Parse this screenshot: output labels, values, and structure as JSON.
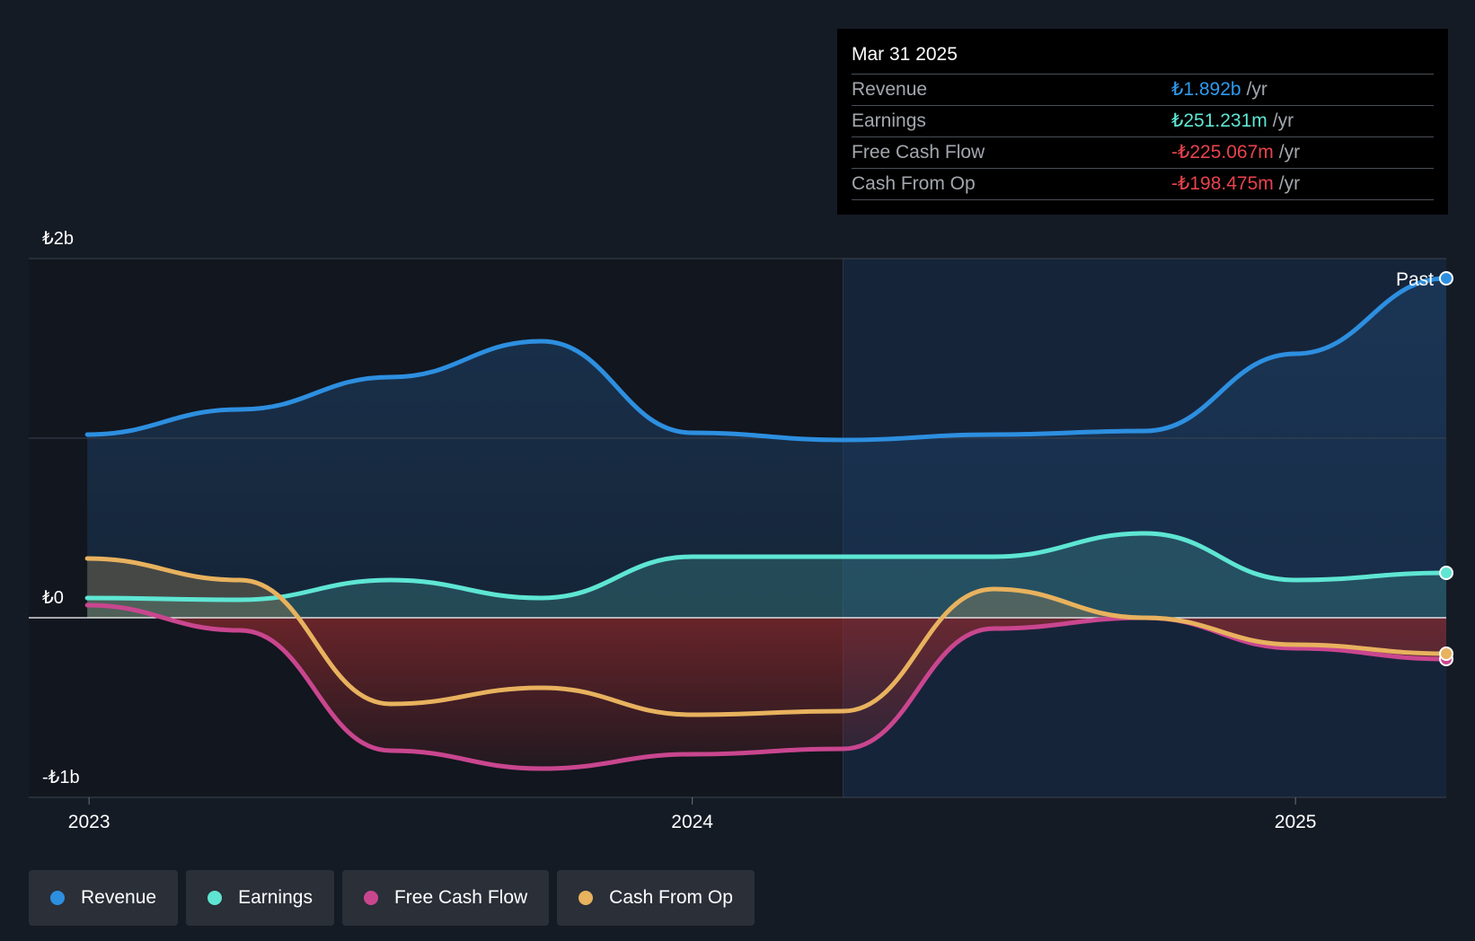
{
  "tooltip": {
    "date": "Mar 31 2025",
    "rows": [
      {
        "name": "Revenue",
        "value": "₺1.892b",
        "unit": "/yr",
        "color": "#2d9bf0"
      },
      {
        "name": "Earnings",
        "value": "₺251.231m",
        "unit": "/yr",
        "color": "#5ee6d3"
      },
      {
        "name": "Free Cash Flow",
        "value": "-₺225.067m",
        "unit": "/yr",
        "color": "#e8434c"
      },
      {
        "name": "Cash From Op",
        "value": "-₺198.475m",
        "unit": "/yr",
        "color": "#e8434c"
      }
    ]
  },
  "legend": [
    {
      "label": "Revenue",
      "color": "#2d8fe0"
    },
    {
      "label": "Earnings",
      "color": "#5ee6d3"
    },
    {
      "label": "Free Cash Flow",
      "color": "#c9468f"
    },
    {
      "label": "Cash From Op",
      "color": "#e8b25e"
    }
  ],
  "chart_data": {
    "type": "line",
    "y_tick_labels": [
      "₺2b",
      "₺0",
      "-₺1b"
    ],
    "x_tick_labels": [
      "2023",
      "2024",
      "2025"
    ],
    "past_label": "Past",
    "ylim": [
      -1.0,
      2.0
    ],
    "xlim": [
      2022.9,
      2025.25
    ],
    "x_ticks": [
      2023.0,
      2024.0,
      2025.0
    ],
    "y_ticks": [
      2.0,
      1.0,
      0.0,
      -1.0
    ],
    "past_divider_x": 2024.25,
    "series": [
      {
        "name": "Revenue",
        "color": "#2d8fe0",
        "x": [
          2022.997,
          2023.25,
          2023.5,
          2023.75,
          2024.0,
          2024.25,
          2024.5,
          2024.75,
          2025.0,
          2025.25
        ],
        "y": [
          1.02,
          1.16,
          1.34,
          1.54,
          1.03,
          0.99,
          1.02,
          1.04,
          1.47,
          1.89
        ]
      },
      {
        "name": "Earnings",
        "color": "#5ee6d3",
        "x": [
          2022.997,
          2023.25,
          2023.5,
          2023.75,
          2024.0,
          2024.25,
          2024.5,
          2024.75,
          2025.0,
          2025.25
        ],
        "y": [
          0.11,
          0.1,
          0.21,
          0.11,
          0.34,
          0.34,
          0.34,
          0.47,
          0.21,
          0.25
        ]
      },
      {
        "name": "Free Cash Flow",
        "color": "#c9468f",
        "x": [
          2022.997,
          2023.25,
          2023.5,
          2023.75,
          2024.0,
          2024.25,
          2024.5,
          2024.75,
          2025.0,
          2025.25
        ],
        "y": [
          0.07,
          -0.07,
          -0.74,
          -0.84,
          -0.76,
          -0.73,
          -0.06,
          0.0,
          -0.17,
          -0.23
        ]
      },
      {
        "name": "Cash From Op",
        "color": "#e8b25e",
        "x": [
          2022.997,
          2023.25,
          2023.5,
          2023.75,
          2024.0,
          2024.25,
          2024.5,
          2024.75,
          2025.0,
          2025.25
        ],
        "y": [
          0.33,
          0.21,
          -0.48,
          -0.39,
          -0.54,
          -0.52,
          0.16,
          0.0,
          -0.15,
          -0.2
        ]
      }
    ]
  }
}
